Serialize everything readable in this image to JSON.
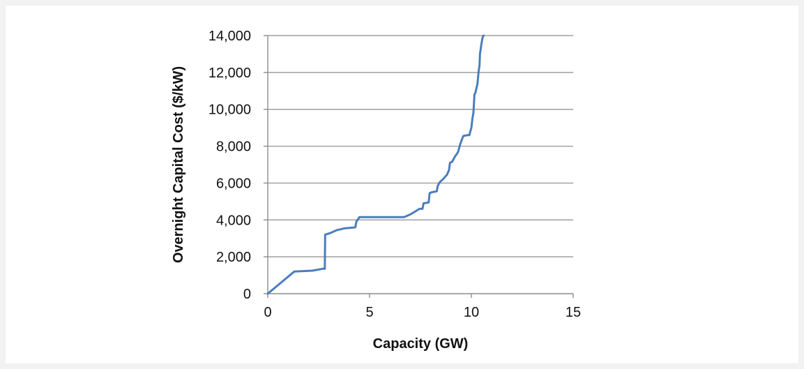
{
  "chart_data": {
    "type": "line",
    "title": "",
    "xlabel": "Capacity (GW)",
    "ylabel": "Overnight Capital Cost ($/kW)",
    "xlim": [
      0,
      15
    ],
    "ylim": [
      0,
      14000
    ],
    "x_ticks": [
      0,
      5,
      10,
      15
    ],
    "x_tick_labels": [
      "0",
      "5",
      "10",
      "15"
    ],
    "y_ticks": [
      0,
      2000,
      4000,
      6000,
      8000,
      10000,
      12000,
      14000
    ],
    "y_tick_labels": [
      "0",
      "2,000",
      "4,000",
      "6,000",
      "8,000",
      "10,000",
      "12,000",
      "14,000"
    ],
    "grid": "horizontal",
    "line_color": "#4a7ebb",
    "series": [
      {
        "x": [
          0,
          1.3,
          2.2,
          2.7,
          2.8,
          2.82,
          3.1,
          3.4,
          3.8,
          4.3,
          4.35,
          4.5,
          4.6,
          6.7,
          7.0,
          7.3,
          7.45,
          7.6,
          7.65,
          7.9,
          7.95,
          8.05,
          8.3,
          8.35,
          8.45,
          8.6,
          8.8,
          8.9,
          8.95,
          9.05,
          9.2,
          9.3,
          9.35,
          9.45,
          9.6,
          9.8,
          9.9,
          9.95,
          10.0,
          10.05,
          10.1,
          10.15,
          10.2,
          10.3,
          10.35,
          10.4,
          10.42,
          10.45,
          10.5,
          10.55,
          10.6
        ],
        "y": [
          0,
          1200,
          1250,
          1350,
          1350,
          3200,
          3300,
          3450,
          3550,
          3600,
          3900,
          4150,
          4150,
          4150,
          4300,
          4500,
          4600,
          4600,
          4900,
          4950,
          5450,
          5500,
          5550,
          5850,
          6050,
          6200,
          6450,
          6700,
          7100,
          7150,
          7450,
          7600,
          7700,
          8100,
          8550,
          8600,
          8600,
          8800,
          9000,
          9500,
          9800,
          10800,
          10900,
          11400,
          12000,
          12400,
          13000,
          13200,
          13600,
          13900,
          14000
        ]
      }
    ]
  }
}
